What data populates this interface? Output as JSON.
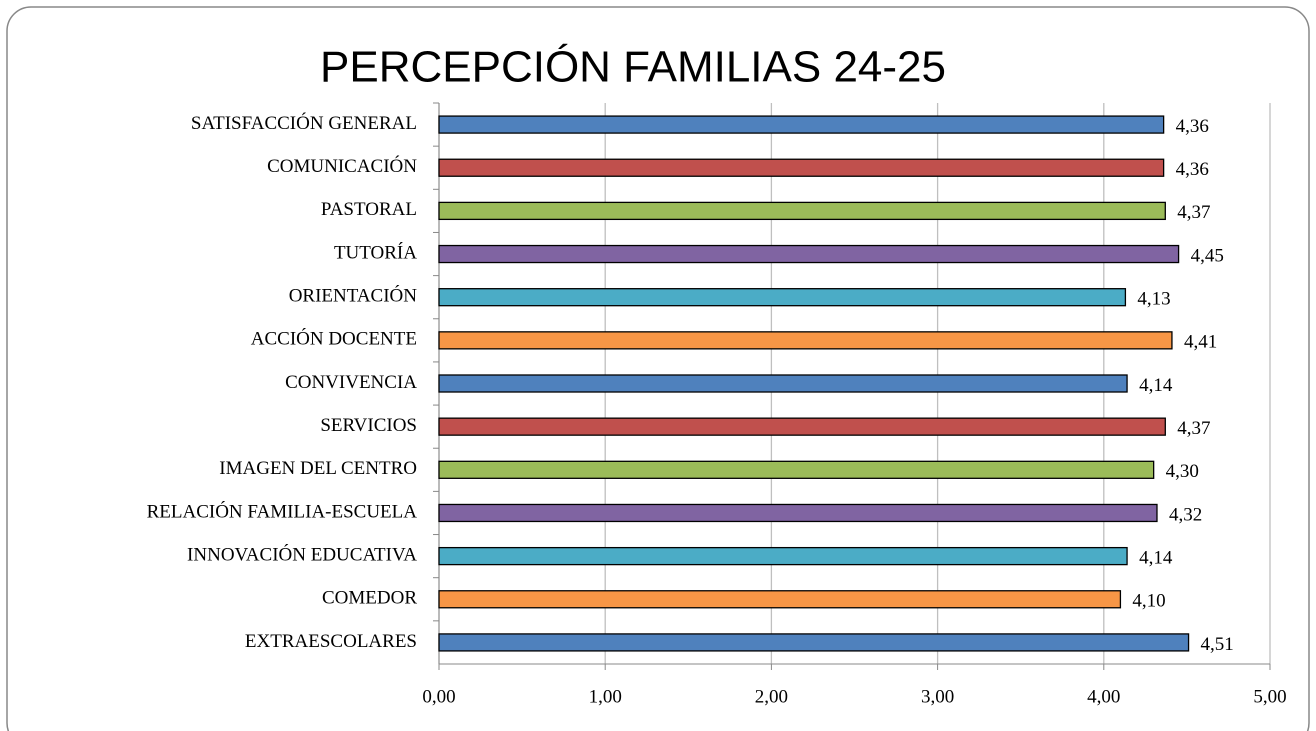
{
  "chart_data": {
    "type": "hbar",
    "title": "PERCEPCIÓN FAMILIAS 24-25",
    "categories": [
      "SATISFACCIÓN GENERAL",
      "COMUNICACIÓN",
      "PASTORAL",
      "TUTORÍA",
      "ORIENTACIÓN",
      "ACCIÓN DOCENTE",
      "CONVIVENCIA",
      "SERVICIOS",
      "IMAGEN DEL CENTRO",
      "RELACIÓN FAMILIA-ESCUELA",
      "INNOVACIÓN EDUCATIVA",
      "COMEDOR",
      "EXTRAESCOLARES"
    ],
    "values": [
      4.36,
      4.36,
      4.37,
      4.45,
      4.13,
      4.41,
      4.14,
      4.37,
      4.3,
      4.32,
      4.14,
      4.1,
      4.51
    ],
    "value_labels": [
      "4,36",
      "4,36",
      "4,37",
      "4,45",
      "4,13",
      "4,41",
      "4,14",
      "4,37",
      "4,30",
      "4,32",
      "4,14",
      "4,10",
      "4,51"
    ],
    "colors": [
      "#4f81bd",
      "#c0504d",
      "#9bbb59",
      "#8064a2",
      "#4bacc6",
      "#f79646",
      "#4f81bd",
      "#c0504d",
      "#9bbb59",
      "#8064a2",
      "#4bacc6",
      "#f79646",
      "#4f81bd"
    ],
    "xlim": [
      0,
      5
    ],
    "xticks": [
      {
        "value": 0,
        "label": "0,00"
      },
      {
        "value": 1,
        "label": "1,00"
      },
      {
        "value": 2,
        "label": "2,00"
      },
      {
        "value": 3,
        "label": "3,00"
      },
      {
        "value": 4,
        "label": "4,00"
      },
      {
        "value": 5,
        "label": "5,00"
      }
    ],
    "grid": true
  }
}
